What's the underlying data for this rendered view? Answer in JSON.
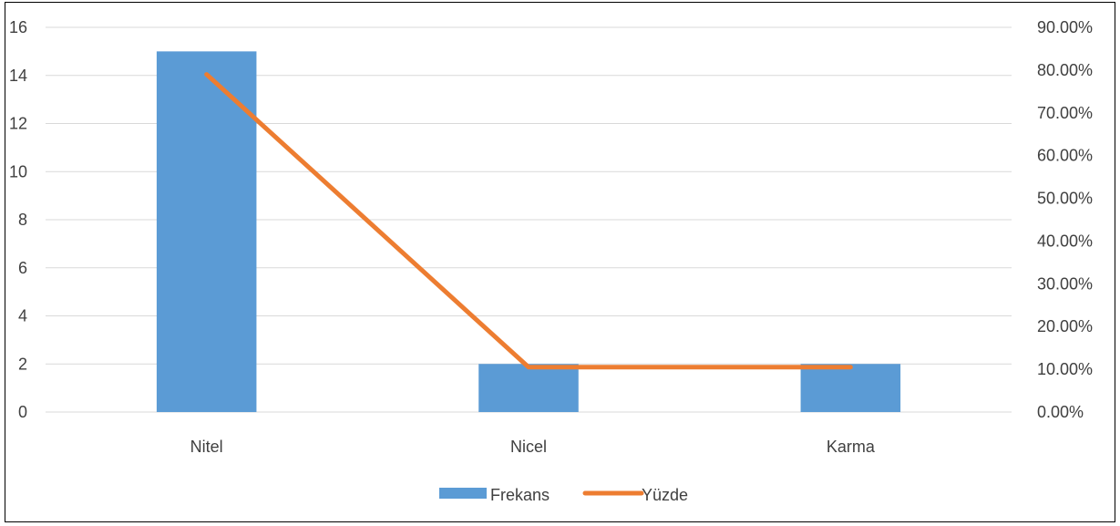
{
  "chart_data": {
    "type": "bar",
    "categories": [
      "Nitel",
      "Nicel",
      "Karma"
    ],
    "series": [
      {
        "name": "Frekans",
        "type": "bar",
        "axis": "left",
        "color": "#5B9BD5",
        "values": [
          15,
          2,
          2
        ]
      },
      {
        "name": "Yüzde",
        "type": "line",
        "axis": "right",
        "color": "#ED7D31",
        "values": [
          0.79,
          0.105,
          0.105
        ]
      }
    ],
    "left_axis": {
      "min": 0,
      "max": 16,
      "ticks": [
        "0",
        "2",
        "4",
        "6",
        "8",
        "10",
        "12",
        "14",
        "16"
      ]
    },
    "right_axis": {
      "min": 0,
      "max": 0.9,
      "ticks": [
        "0.00%",
        "10.00%",
        "20.00%",
        "30.00%",
        "40.00%",
        "50.00%",
        "60.00%",
        "70.00%",
        "80.00%",
        "90.00%"
      ]
    },
    "grid": true,
    "legend": "bottom",
    "title": "",
    "xlabel": "",
    "ylabel": ""
  }
}
